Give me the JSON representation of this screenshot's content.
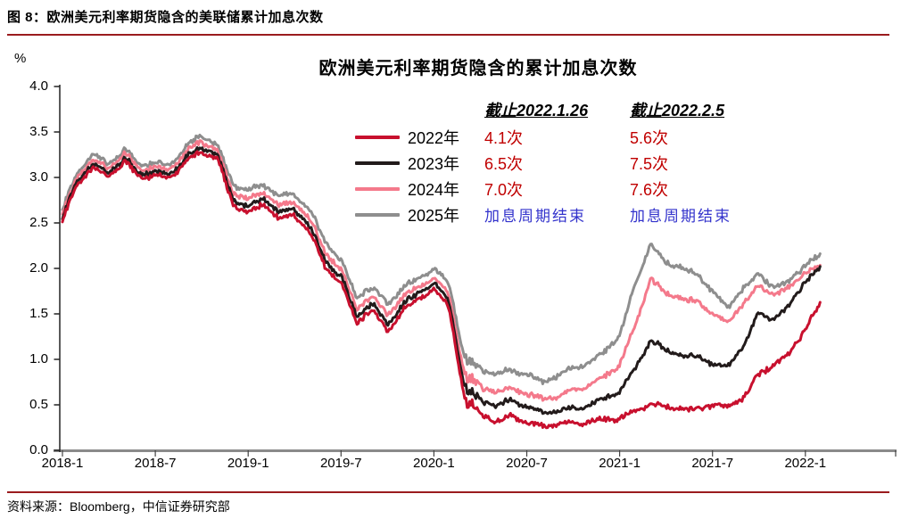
{
  "page": {
    "figure_label": "图 8：欧洲美元利率期货隐含的美联储累计加息次数",
    "source_text": "资料来源：Bloomberg，中信证券研究部",
    "accent_line_color": "#9b1b1e"
  },
  "chart_data": {
    "type": "line",
    "title": "欧洲美元利率期货隐含的累计加息次数",
    "y_unit_label": "%",
    "ylim": [
      0.0,
      4.0
    ],
    "y_ticks": [
      "4.0",
      "3.5",
      "3.0",
      "2.5",
      "2.0",
      "1.5",
      "1.0",
      "0.5",
      "0.0"
    ],
    "x_ticks": [
      "2018-1",
      "2018-7",
      "2019-1",
      "2019-7",
      "2020-1",
      "2020-7",
      "2021-1",
      "2021-7",
      "2022-1"
    ],
    "x_monthly_from": "2018-01",
    "x_monthly_to": "2022-02",
    "grid": "off",
    "legend_position": "inside-top-right",
    "series": [
      {
        "name": "2022年",
        "color": "#c8102e",
        "values": [
          2.52,
          2.95,
          3.1,
          3.02,
          3.17,
          3.0,
          3.02,
          3.0,
          3.18,
          3.28,
          3.2,
          2.7,
          2.62,
          2.7,
          2.55,
          2.58,
          2.4,
          2.0,
          1.85,
          1.4,
          1.55,
          1.3,
          1.55,
          1.65,
          1.78,
          1.55,
          0.55,
          0.4,
          0.32,
          0.38,
          0.3,
          0.26,
          0.29,
          0.3,
          0.32,
          0.33,
          0.36,
          0.42,
          0.52,
          0.48,
          0.46,
          0.44,
          0.5,
          0.48,
          0.58,
          0.83,
          0.95,
          1.05,
          1.35,
          1.62
        ]
      },
      {
        "name": "2023年",
        "color": "#221b1b",
        "values": [
          2.56,
          2.99,
          3.14,
          3.06,
          3.21,
          3.04,
          3.06,
          3.04,
          3.22,
          3.33,
          3.24,
          2.76,
          2.68,
          2.76,
          2.62,
          2.65,
          2.47,
          2.07,
          1.92,
          1.47,
          1.62,
          1.38,
          1.62,
          1.72,
          1.84,
          1.62,
          0.68,
          0.55,
          0.5,
          0.55,
          0.48,
          0.4,
          0.43,
          0.46,
          0.5,
          0.56,
          0.66,
          0.88,
          1.22,
          1.1,
          1.05,
          1.02,
          0.95,
          0.92,
          1.15,
          1.5,
          1.45,
          1.58,
          1.88,
          2.0
        ]
      },
      {
        "name": "2024年",
        "color": "#f4798b",
        "values": [
          2.6,
          3.03,
          3.19,
          3.1,
          3.26,
          3.09,
          3.11,
          3.09,
          3.28,
          3.4,
          3.29,
          2.83,
          2.76,
          2.83,
          2.7,
          2.72,
          2.55,
          2.16,
          2.0,
          1.56,
          1.7,
          1.48,
          1.7,
          1.79,
          1.9,
          1.7,
          0.82,
          0.7,
          0.65,
          0.68,
          0.62,
          0.56,
          0.59,
          0.66,
          0.72,
          0.8,
          0.95,
          1.35,
          1.9,
          1.72,
          1.68,
          1.62,
          1.5,
          1.4,
          1.62,
          1.8,
          1.72,
          1.78,
          1.97,
          2.02
        ]
      },
      {
        "name": "2025年",
        "color": "#8e8e8e",
        "values": [
          2.65,
          3.08,
          3.25,
          3.15,
          3.31,
          3.14,
          3.16,
          3.14,
          3.34,
          3.47,
          3.35,
          2.92,
          2.86,
          2.92,
          2.8,
          2.81,
          2.65,
          2.28,
          2.1,
          1.68,
          1.8,
          1.6,
          1.8,
          1.88,
          2.0,
          1.82,
          1.0,
          0.88,
          0.85,
          0.88,
          0.84,
          0.74,
          0.82,
          0.9,
          0.97,
          1.07,
          1.28,
          1.8,
          2.28,
          2.05,
          2.02,
          1.92,
          1.75,
          1.56,
          1.8,
          1.92,
          1.8,
          1.85,
          2.05,
          2.15
        ]
      }
    ],
    "legend_table": {
      "columns": [
        "截止2022.1.26",
        "截止2022.2.5"
      ],
      "rows": [
        {
          "series": "2022年",
          "col1": "4.1次",
          "col2": "5.6次"
        },
        {
          "series": "2023年",
          "col1": "6.5次",
          "col2": "7.5次"
        },
        {
          "series": "2024年",
          "col1": "7.0次",
          "col2": "7.6次"
        },
        {
          "series": "2025年",
          "col1": "加息周期结束",
          "col2": "加息周期结束"
        }
      ],
      "value_color": "#c00000",
      "end_of_cycle_color": "#3333cc"
    }
  }
}
